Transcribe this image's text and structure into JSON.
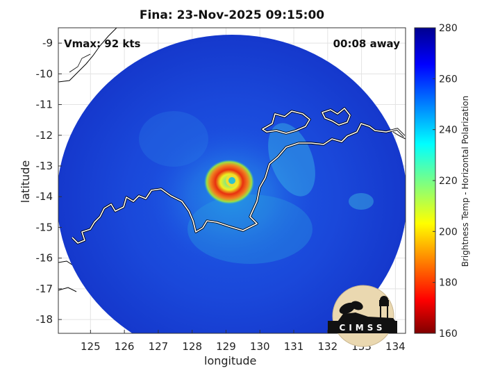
{
  "title": "Fina: 23-Nov-2025 09:15:00",
  "vmax_label": "Vmax: 92 kts",
  "time_away_label": "00:08 away",
  "logo_text": "CIMSS",
  "colors": {
    "background_ocean": "#1432c8",
    "coast_on_image": "#ffffff",
    "coast_off_image": "#000000"
  },
  "chart_data": {
    "type": "heatmap",
    "title": "Fina: 23-Nov-2025 09:15:00",
    "xlabel": "longitude",
    "ylabel": "latitude",
    "xlim": [
      124.05,
      134.3
    ],
    "ylim": [
      -18.45,
      -8.5
    ],
    "xticks": [
      125,
      126,
      127,
      128,
      129,
      130,
      131,
      132,
      133,
      134
    ],
    "yticks": [
      -9,
      -10,
      -11,
      -12,
      -13,
      -14,
      -15,
      -16,
      -17,
      -18
    ],
    "grid": true,
    "storm_center": {
      "lon": 129.2,
      "lat": -13.45
    },
    "colorbar": {
      "label": "Brightness Temp - Horizontal Polarization",
      "range": [
        160,
        280
      ],
      "ticks": [
        280,
        260,
        240,
        220,
        200,
        180,
        160
      ],
      "colormap": "jet"
    }
  }
}
